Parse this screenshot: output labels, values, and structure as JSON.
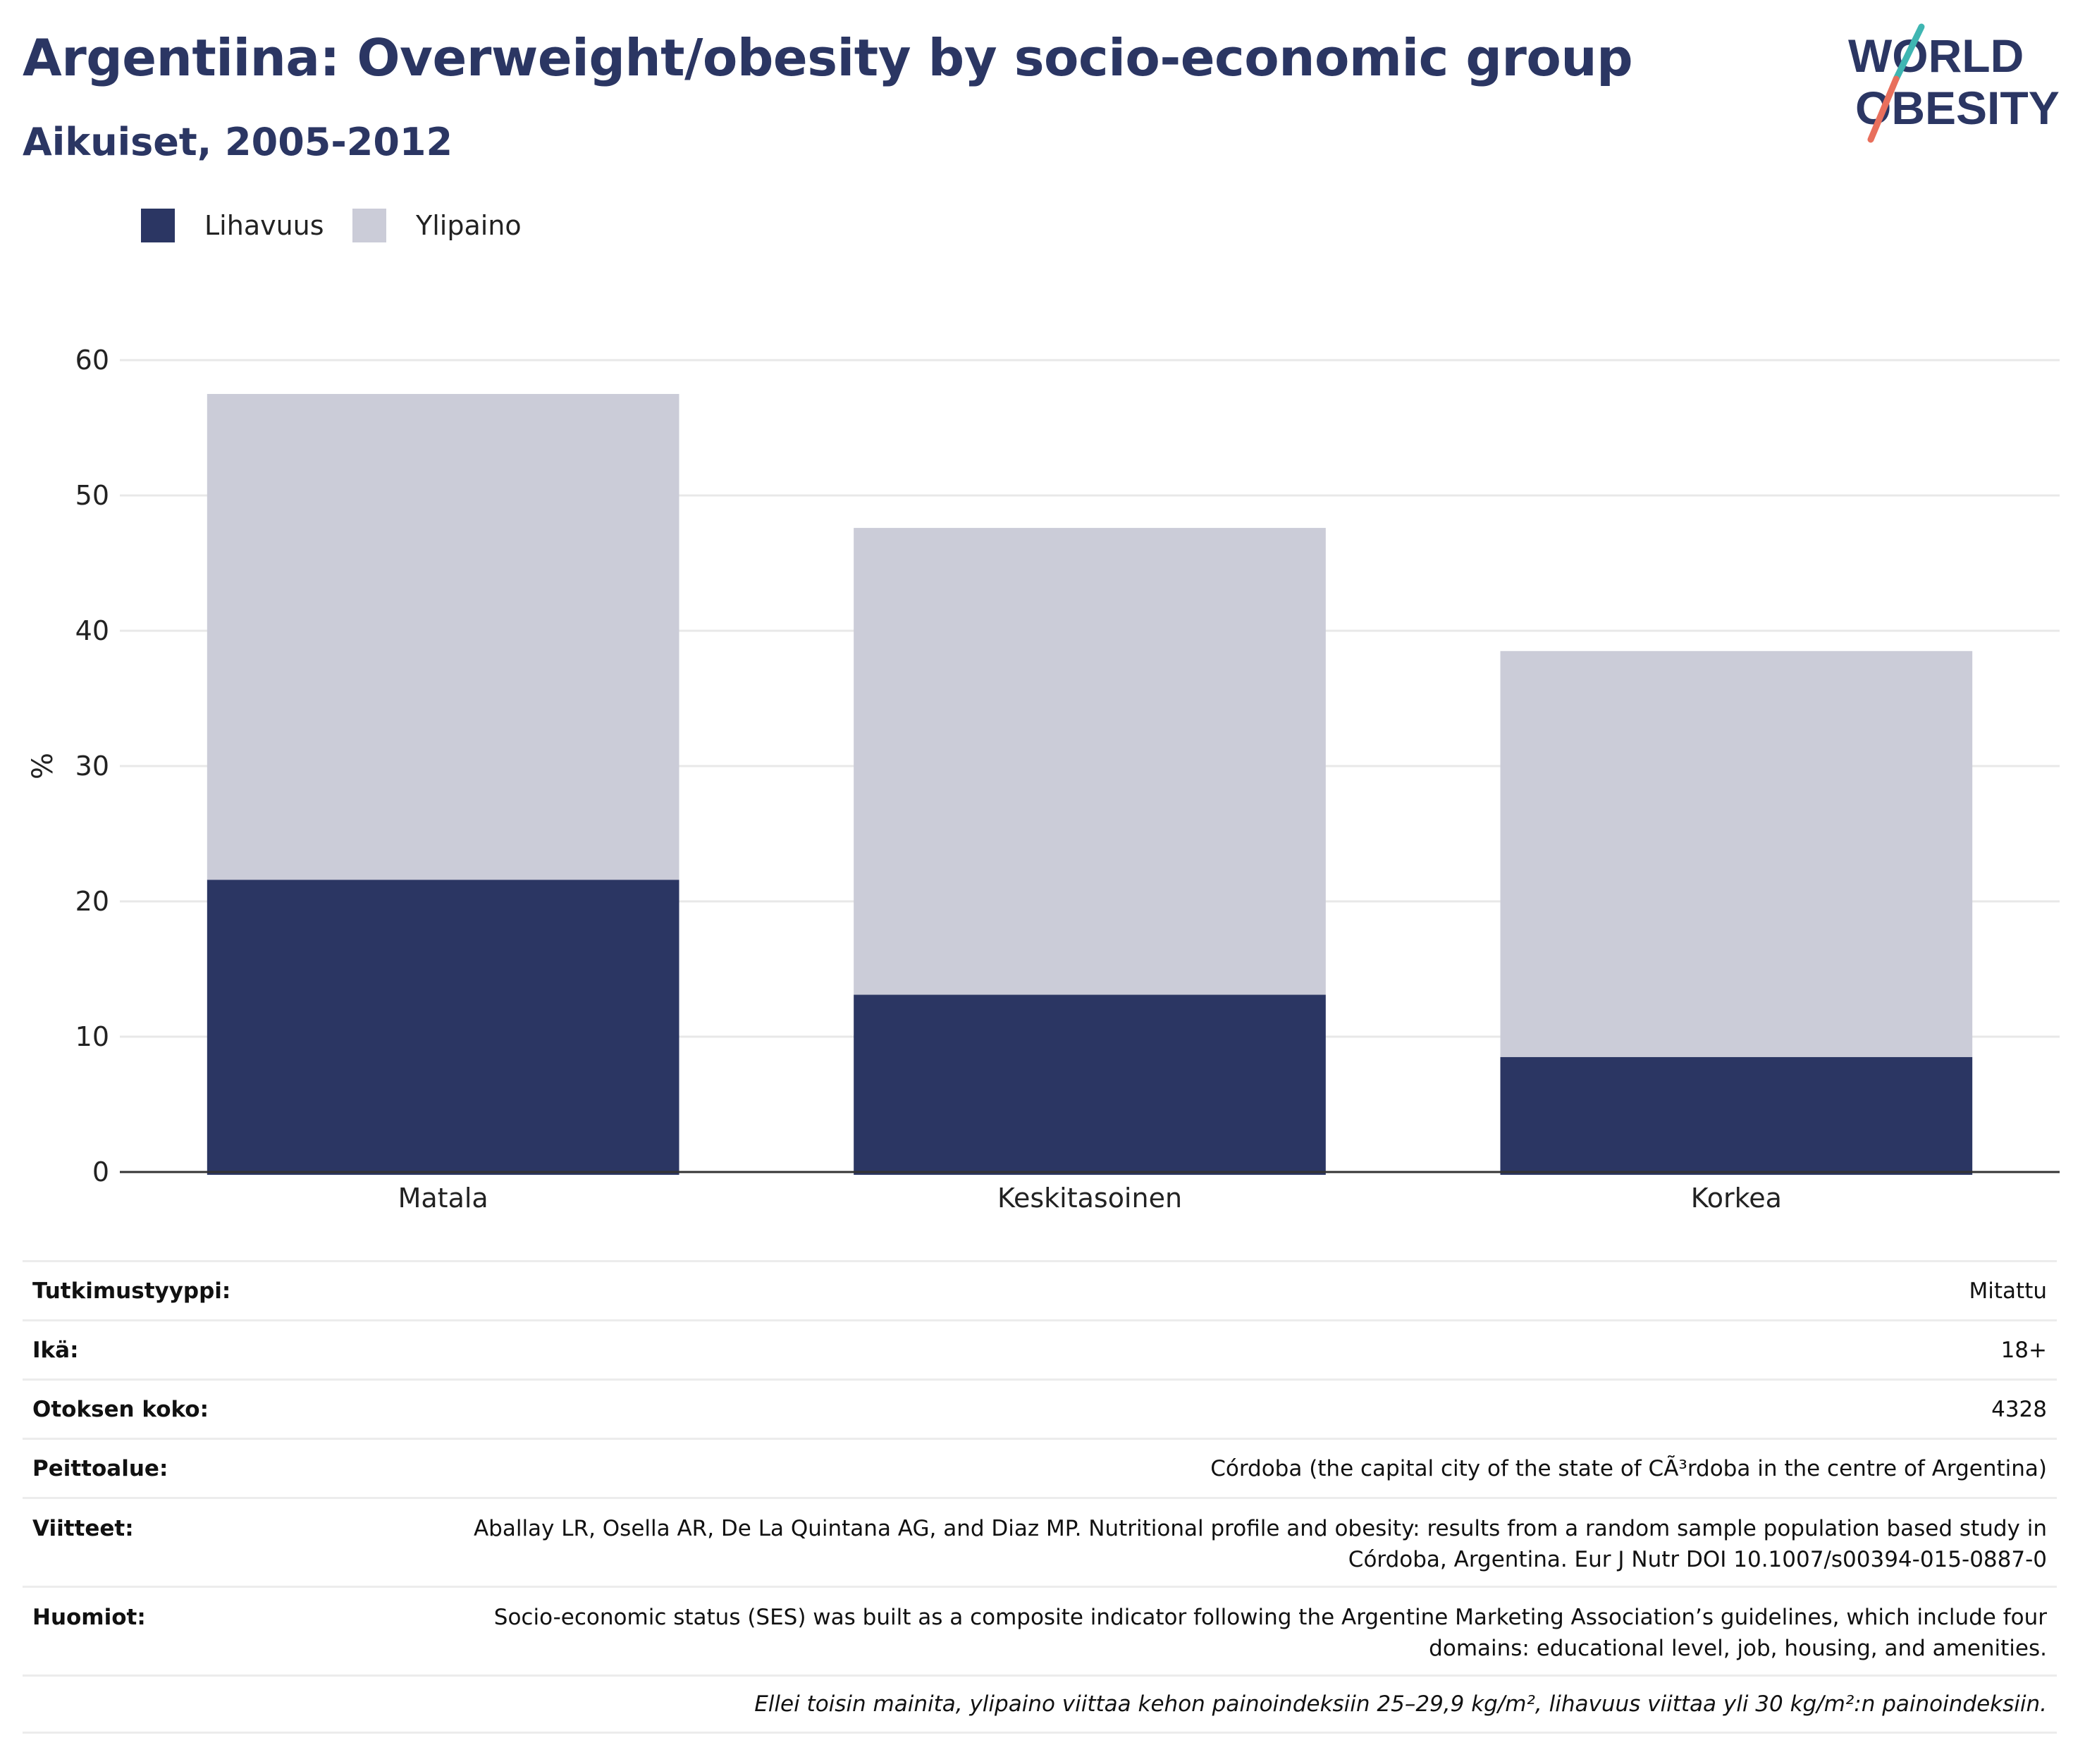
{
  "header": {
    "title": "Argentiina: Overweight/obesity by socio-economic group",
    "subtitle": "Aikuiset, 2005-2012"
  },
  "logo": {
    "line1": "WORLD",
    "line2": "OBESITY"
  },
  "legend": [
    {
      "label": "Lihavuus",
      "color": "#2b3663"
    },
    {
      "label": "Ylipaino",
      "color": "#cbccd8"
    }
  ],
  "chart_data": {
    "type": "bar",
    "stacked": true,
    "categories": [
      "Matala",
      "Keskitasoinen",
      "Korkea"
    ],
    "series": [
      {
        "name": "Lihavuus",
        "values": [
          21.6,
          13.1,
          8.5
        ],
        "color": "#2b3663"
      },
      {
        "name": "Ylipaino",
        "values": [
          35.9,
          34.5,
          30.0
        ],
        "color": "#cbccd8"
      }
    ],
    "ylabel": "%",
    "xlabel": "",
    "ylim": [
      0,
      60
    ],
    "yticks": [
      0,
      10,
      20,
      30,
      40,
      50,
      60
    ],
    "grid": true,
    "legend_position": "top-left"
  },
  "meta": [
    {
      "key": "Tutkimustyyppi:",
      "value": "Mitattu"
    },
    {
      "key": "Ikä:",
      "value": "18+"
    },
    {
      "key": "Otoksen koko:",
      "value": "4328"
    },
    {
      "key": "Peittoalue:",
      "value": "Córdoba (the capital city of the state of CÃ³rdoba in the centre of Argentina)"
    },
    {
      "key": "Viitteet:",
      "value": "Aballay LR, Osella AR, De La Quintana AG, and Diaz MP. Nutritional profile and obesity: results from a random sample population based study in Córdoba, Argentina. Eur J Nutr DOI 10.1007/s00394-015-0887-0"
    },
    {
      "key": "Huomiot:",
      "value": "Socio-economic status (SES) was built as a composite indicator following the Argentine Marketing Association’s guidelines, which include four domains: educational level, job, housing, and amenities."
    }
  ],
  "footnote": "Ellei toisin mainita, ylipaino viittaa kehon painoindeksiin 25–29,9 kg/m², lihavuus viittaa yli 30 kg/m²:n painoindeksiin."
}
